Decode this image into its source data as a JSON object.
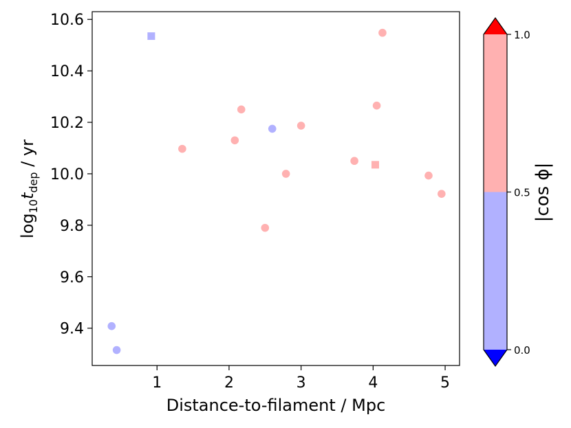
{
  "chart_data": {
    "type": "scatter",
    "xlabel": "Distance-to-filament / Mpc",
    "ylabel_parts": {
      "prefix": "log",
      "sub1": "10",
      "var": "t",
      "sub2": "dep",
      "suffix": " / yr"
    },
    "xlim": [
      0.1,
      5.2
    ],
    "ylim": [
      9.255,
      10.63
    ],
    "x_ticks": [
      1,
      2,
      3,
      4,
      5
    ],
    "x_tick_labels": [
      "1",
      "2",
      "3",
      "4",
      "5"
    ],
    "y_ticks": [
      9.4,
      9.6,
      9.8,
      10.0,
      10.2,
      10.4,
      10.6
    ],
    "y_tick_labels": [
      "9.4",
      "9.6",
      "9.8",
      "10.0",
      "10.2",
      "10.4",
      "10.6"
    ],
    "grid": false,
    "colors": {
      "high": "#ffb1b1",
      "low": "#b1b1ff",
      "over": "#ff0000",
      "under": "#0000ff"
    },
    "colorbar": {
      "label": "|cos ϕ|",
      "range": [
        0.0,
        1.0
      ],
      "threshold": 0.5,
      "ticks": [
        0.0,
        0.5,
        1.0
      ],
      "tick_labels": [
        "0.0",
        "0.5",
        "1.0"
      ],
      "extend": "both"
    },
    "points": [
      {
        "x": 0.92,
        "y": 10.535,
        "marker": "square",
        "group": "low"
      },
      {
        "x": 4.13,
        "y": 10.548,
        "marker": "circle",
        "group": "high"
      },
      {
        "x": 2.17,
        "y": 10.25,
        "marker": "circle",
        "group": "high"
      },
      {
        "x": 4.05,
        "y": 10.265,
        "marker": "circle",
        "group": "high"
      },
      {
        "x": 2.6,
        "y": 10.175,
        "marker": "circle",
        "group": "low"
      },
      {
        "x": 3.0,
        "y": 10.187,
        "marker": "circle",
        "group": "high"
      },
      {
        "x": 2.08,
        "y": 10.13,
        "marker": "circle",
        "group": "high"
      },
      {
        "x": 1.35,
        "y": 10.097,
        "marker": "circle",
        "group": "high"
      },
      {
        "x": 3.74,
        "y": 10.05,
        "marker": "circle",
        "group": "high"
      },
      {
        "x": 4.03,
        "y": 10.035,
        "marker": "square",
        "group": "high"
      },
      {
        "x": 2.79,
        "y": 10.0,
        "marker": "circle",
        "group": "high"
      },
      {
        "x": 4.77,
        "y": 9.993,
        "marker": "circle",
        "group": "high"
      },
      {
        "x": 4.95,
        "y": 9.922,
        "marker": "circle",
        "group": "high"
      },
      {
        "x": 2.5,
        "y": 9.79,
        "marker": "circle",
        "group": "high"
      },
      {
        "x": 0.37,
        "y": 9.408,
        "marker": "circle",
        "group": "low"
      },
      {
        "x": 0.44,
        "y": 9.315,
        "marker": "circle",
        "group": "low"
      }
    ]
  }
}
